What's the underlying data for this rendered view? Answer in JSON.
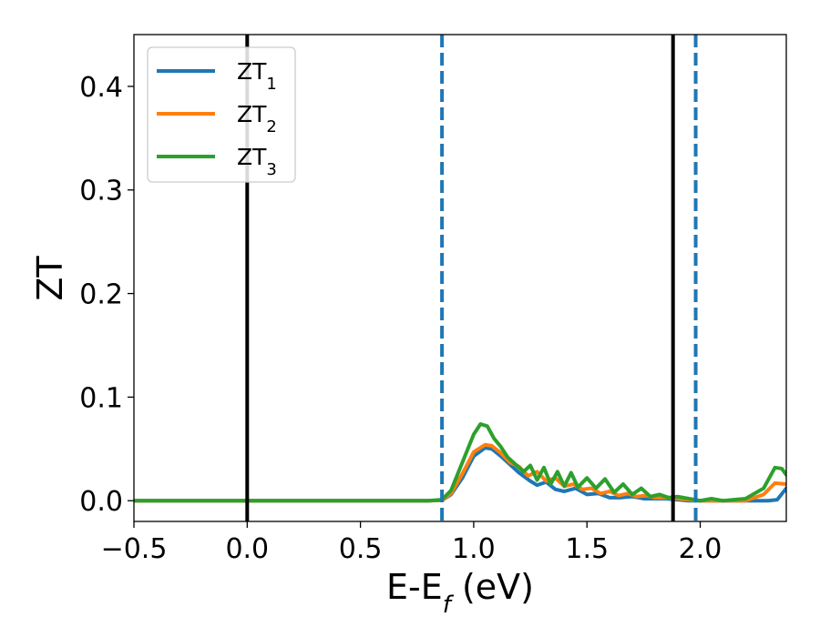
{
  "chart_data": {
    "type": "line",
    "xlabel": "E-E",
    "xlabel_subscript": "f",
    "xlabel_unit": " (eV)",
    "ylabel": "ZT",
    "xlim": [
      -0.5,
      2.38
    ],
    "ylim": [
      -0.02,
      0.45
    ],
    "xticks": [
      -0.5,
      0.0,
      0.5,
      1.0,
      1.5,
      2.0
    ],
    "xtick_labels": [
      "−0.5",
      "0.0",
      "0.5",
      "1.0",
      "1.5",
      "2.0"
    ],
    "yticks": [
      0.0,
      0.1,
      0.2,
      0.3,
      0.4
    ],
    "ytick_labels": [
      "0.0",
      "0.1",
      "0.2",
      "0.3",
      "0.4"
    ],
    "grid": false,
    "legend_position": "upper-left",
    "vertical_lines": [
      {
        "x": 0.0,
        "style": "solid",
        "color": "#000000"
      },
      {
        "x": 1.88,
        "style": "solid",
        "color": "#000000"
      },
      {
        "x": 0.86,
        "style": "dashed",
        "color": "#1f77b4"
      },
      {
        "x": 1.98,
        "style": "dashed",
        "color": "#1f77b4"
      }
    ],
    "series": [
      {
        "name": "ZT",
        "name_subscript": "1",
        "color": "#1f77b4",
        "x": [
          -0.5,
          0.8,
          0.86,
          0.9,
          0.95,
          1.0,
          1.05,
          1.08,
          1.12,
          1.16,
          1.2,
          1.25,
          1.28,
          1.32,
          1.36,
          1.4,
          1.45,
          1.5,
          1.55,
          1.6,
          1.65,
          1.7,
          1.75,
          1.8,
          1.85,
          1.9,
          1.95,
          2.0,
          2.05,
          2.1,
          2.2,
          2.3,
          2.34,
          2.38
        ],
        "y": [
          0.0,
          0.0,
          0.0005,
          0.006,
          0.022,
          0.043,
          0.051,
          0.05,
          0.043,
          0.035,
          0.027,
          0.019,
          0.015,
          0.018,
          0.011,
          0.009,
          0.012,
          0.006,
          0.007,
          0.003,
          0.003,
          0.004,
          0.002,
          0.002,
          0.002,
          0.001,
          0.0,
          0.0,
          0.0,
          0.0,
          0.0,
          0.0,
          0.001,
          0.012
        ]
      },
      {
        "name": "ZT",
        "name_subscript": "2",
        "color": "#ff7f0e",
        "x": [
          -0.5,
          0.8,
          0.86,
          0.9,
          0.95,
          1.0,
          1.05,
          1.08,
          1.12,
          1.16,
          1.2,
          1.24,
          1.28,
          1.32,
          1.36,
          1.4,
          1.44,
          1.48,
          1.52,
          1.56,
          1.6,
          1.64,
          1.68,
          1.72,
          1.76,
          1.8,
          1.85,
          1.9,
          1.95,
          2.0,
          2.05,
          2.1,
          2.2,
          2.28,
          2.33,
          2.38
        ],
        "y": [
          0.0,
          0.0,
          0.0005,
          0.007,
          0.026,
          0.047,
          0.054,
          0.053,
          0.046,
          0.037,
          0.033,
          0.024,
          0.028,
          0.019,
          0.022,
          0.014,
          0.016,
          0.011,
          0.012,
          0.007,
          0.009,
          0.005,
          0.007,
          0.004,
          0.005,
          0.003,
          0.003,
          0.002,
          0.001,
          0.0,
          0.0,
          0.0,
          0.0,
          0.006,
          0.017,
          0.016
        ]
      },
      {
        "name": "ZT",
        "name_subscript": "3",
        "color": "#2ca02c",
        "x": [
          -0.5,
          0.8,
          0.86,
          0.9,
          0.95,
          1.0,
          1.03,
          1.06,
          1.09,
          1.12,
          1.15,
          1.18,
          1.22,
          1.25,
          1.28,
          1.31,
          1.34,
          1.37,
          1.4,
          1.43,
          1.46,
          1.5,
          1.54,
          1.58,
          1.62,
          1.66,
          1.7,
          1.74,
          1.78,
          1.82,
          1.86,
          1.9,
          1.95,
          2.0,
          2.05,
          2.1,
          2.2,
          2.28,
          2.33,
          2.36,
          2.38
        ],
        "y": [
          0.0,
          0.0,
          0.001,
          0.01,
          0.037,
          0.064,
          0.074,
          0.072,
          0.06,
          0.052,
          0.042,
          0.036,
          0.028,
          0.034,
          0.02,
          0.032,
          0.016,
          0.028,
          0.014,
          0.027,
          0.013,
          0.022,
          0.012,
          0.021,
          0.008,
          0.016,
          0.006,
          0.012,
          0.004,
          0.006,
          0.003,
          0.004,
          0.002,
          0.0,
          0.002,
          0.0,
          0.002,
          0.012,
          0.032,
          0.031,
          0.025
        ]
      }
    ]
  }
}
